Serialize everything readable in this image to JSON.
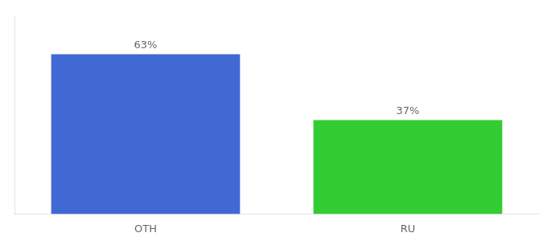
{
  "chart_data": {
    "type": "bar",
    "categories": [
      "OTH",
      "RU"
    ],
    "values": [
      63,
      37
    ],
    "colors": [
      "#4169d4",
      "#33cc33"
    ],
    "value_labels": [
      "63%",
      "37%"
    ],
    "data_labels": true,
    "ylim": [
      0,
      78
    ],
    "grid": false,
    "tick_labels": "x"
  }
}
